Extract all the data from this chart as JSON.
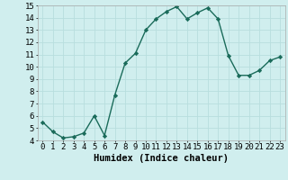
{
  "xlabel": "Humidex (Indice chaleur)",
  "x": [
    0,
    1,
    2,
    3,
    4,
    5,
    6,
    7,
    8,
    9,
    10,
    11,
    12,
    13,
    14,
    15,
    16,
    17,
    18,
    19,
    20,
    21,
    22,
    23
  ],
  "y": [
    5.5,
    4.7,
    4.2,
    4.3,
    4.6,
    6.0,
    4.4,
    7.7,
    10.3,
    11.1,
    13.0,
    13.9,
    14.5,
    14.9,
    13.9,
    14.4,
    14.8,
    13.9,
    10.9,
    9.3,
    9.3,
    9.7,
    10.5,
    10.8
  ],
  "line_color": "#1a6b5a",
  "marker": "D",
  "marker_size": 2.2,
  "bg_color": "#d0eeee",
  "grid_color": "#b8dede",
  "ylim_min": 4,
  "ylim_max": 15,
  "xlim_min": -0.5,
  "xlim_max": 23.5,
  "yticks": [
    4,
    5,
    6,
    7,
    8,
    9,
    10,
    11,
    12,
    13,
    14,
    15
  ],
  "xticks": [
    0,
    1,
    2,
    3,
    4,
    5,
    6,
    7,
    8,
    9,
    10,
    11,
    12,
    13,
    14,
    15,
    16,
    17,
    18,
    19,
    20,
    21,
    22,
    23
  ],
  "tick_label_fontsize": 6.5,
  "xlabel_fontsize": 7.5,
  "linewidth": 1.0
}
